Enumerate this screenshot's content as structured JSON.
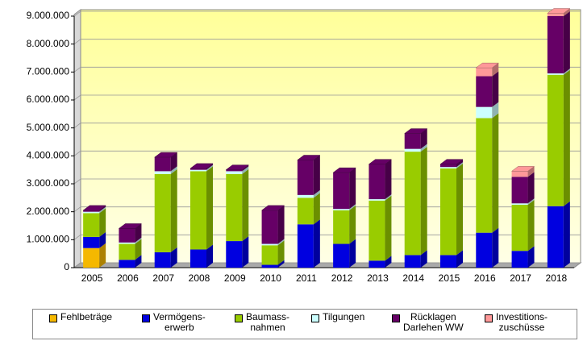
{
  "chart_data": {
    "type": "stacked-bar",
    "categories": [
      "2005",
      "2006",
      "2007",
      "2008",
      "2009",
      "2010",
      "2011",
      "2012",
      "2013",
      "2014",
      "2015",
      "2016",
      "2017",
      "2018"
    ],
    "series": [
      {
        "name": "Fehlbeträge",
        "color": "#f5b800",
        "values": [
          700000,
          0,
          0,
          0,
          0,
          0,
          0,
          0,
          0,
          0,
          0,
          0,
          0,
          0
        ]
      },
      {
        "name": "Vermögens-\nerwerb",
        "color": "#0000e0",
        "values": [
          400000,
          280000,
          550000,
          650000,
          950000,
          100000,
          1550000,
          850000,
          250000,
          450000,
          450000,
          1250000,
          600000,
          2200000
        ]
      },
      {
        "name": "Baumass-\nnahmen",
        "color": "#99cc00",
        "values": [
          850000,
          570000,
          2800000,
          2800000,
          2400000,
          700000,
          950000,
          1200000,
          2150000,
          3700000,
          3100000,
          4100000,
          1650000,
          4700000
        ]
      },
      {
        "name": "Tilgungen",
        "color": "#ccffff",
        "values": [
          50000,
          50000,
          100000,
          50000,
          100000,
          50000,
          100000,
          50000,
          50000,
          100000,
          50000,
          400000,
          50000,
          50000
        ]
      },
      {
        "name": "Rücklagen\nDarlehen WW",
        "color": "#660066",
        "values": [
          50000,
          500000,
          500000,
          50000,
          50000,
          1200000,
          1250000,
          1300000,
          1250000,
          550000,
          100000,
          1100000,
          950000,
          2050000
        ]
      },
      {
        "name": "Investitions-\nzuschüsse",
        "color": "#ff9999",
        "values": [
          0,
          0,
          0,
          0,
          0,
          0,
          0,
          0,
          0,
          0,
          0,
          300000,
          200000,
          100000
        ]
      }
    ],
    "ylim": [
      0,
      9000000
    ],
    "yticks": [
      0,
      {
        "value": 1000000,
        "label": "1.000.000"
      },
      {
        "value": 2000000,
        "label": "2.000.000"
      },
      {
        "value": 3000000,
        "label": "3.000.000"
      },
      {
        "value": 4000000,
        "label": "4.000.000"
      },
      {
        "value": 5000000,
        "label": "5.000.000"
      },
      {
        "value": 6000000,
        "label": "6.000.000"
      },
      {
        "value": 7000000,
        "label": "7.000.000"
      },
      {
        "value": 8000000,
        "label": "8.000.000"
      },
      {
        "value": 9000000,
        "label": "9.000.000"
      }
    ],
    "grid": true
  }
}
